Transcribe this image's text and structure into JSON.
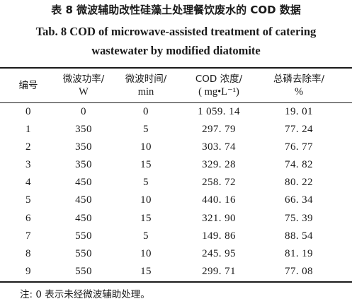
{
  "caption": {
    "cn": "表 8   微波辅助改性硅藻土处理餐饮废水的 COD 数据",
    "en_line1": "Tab. 8    COD of microwave-assisted treatment of catering",
    "en_line2": "wastewater by modified diatomite"
  },
  "table": {
    "headers": [
      {
        "line1": "编号",
        "line2": ""
      },
      {
        "line1": "微波功率/",
        "line2": "W"
      },
      {
        "line1": "微波时间/",
        "line2": "min"
      },
      {
        "line1": "COD 浓度/",
        "line2": "( mg•L⁻¹)"
      },
      {
        "line1": "总磷去除率/",
        "line2": "%"
      }
    ],
    "rows": [
      [
        "0",
        "0",
        "0",
        "1 059. 14",
        "19. 01"
      ],
      [
        "1",
        "350",
        "5",
        "297. 79",
        "77. 24"
      ],
      [
        "2",
        "350",
        "10",
        "303. 74",
        "76. 77"
      ],
      [
        "3",
        "350",
        "15",
        "329. 28",
        "74. 82"
      ],
      [
        "4",
        "450",
        "5",
        "258. 72",
        "80. 22"
      ],
      [
        "5",
        "450",
        "10",
        "440. 16",
        "66. 34"
      ],
      [
        "6",
        "450",
        "15",
        "321. 90",
        "75. 39"
      ],
      [
        "7",
        "550",
        "5",
        "149. 86",
        "88. 54"
      ],
      [
        "8",
        "550",
        "10",
        "245. 95",
        "81. 19"
      ],
      [
        "9",
        "550",
        "15",
        "299. 71",
        "77. 08"
      ]
    ]
  },
  "note": "注: 0 表示未经微波辅助处理。"
}
